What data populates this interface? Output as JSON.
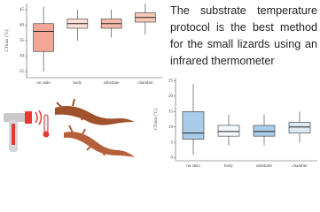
{
  "headline": "The substrate temperature protocol is the best method for the small lizards using an infrared thermometer",
  "chart_data": [
    {
      "type": "box",
      "y_label": "CTmax (°C)",
      "categories": [
        "no ratio",
        "body",
        "substrate",
        "chamber"
      ],
      "colors": [
        "#f4a696",
        "#fbe0d6",
        "#f6b8aa",
        "#f7c8b8"
      ],
      "min": [
        25,
        35,
        36,
        37
      ],
      "q1": [
        31.5,
        39,
        39,
        41
      ],
      "median": [
        38,
        40.5,
        40.5,
        42.5
      ],
      "q3": [
        40.5,
        42,
        42,
        44
      ],
      "max": [
        46,
        45,
        45,
        47
      ],
      "ylim": [
        23,
        47
      ],
      "yticks": [
        25,
        30,
        35,
        40,
        45
      ]
    },
    {
      "type": "box",
      "y_label": "CTmin (°C)",
      "categories": [
        "no ratio",
        "body",
        "substrate",
        "chamber"
      ],
      "colors": [
        "#a9cde8",
        "#f4f8fc",
        "#a9cde8",
        "#dbe9f5"
      ],
      "min": [
        1,
        4,
        4,
        5
      ],
      "q1": [
        6,
        7,
        7,
        8
      ],
      "median": [
        8,
        8.5,
        8.5,
        10
      ],
      "q3": [
        15,
        10.5,
        10.5,
        11.5
      ],
      "max": [
        24,
        14,
        14,
        15
      ],
      "ylim": [
        -1,
        26
      ],
      "yticks": [
        0,
        5,
        10,
        15,
        20,
        25
      ]
    }
  ]
}
